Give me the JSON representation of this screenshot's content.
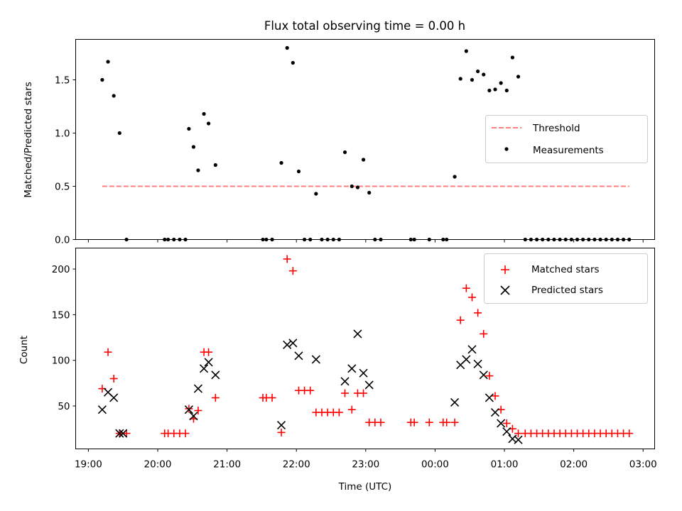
{
  "chart_data": [
    {
      "type": "scatter",
      "title": "Flux total observing time = 0.00 h",
      "xlabel": "",
      "ylabel": "Matched/Predicted stars",
      "x_time_range": [
        "19:00",
        "03:00"
      ],
      "xlim": [
        "18:49",
        "03:10"
      ],
      "ylim": [
        0,
        1.88
      ],
      "ytick_labels": [
        "0.0",
        "0.5",
        "1.0",
        "1.5"
      ],
      "yticks": [
        0,
        0.5,
        1.0,
        1.5
      ],
      "legend_position": "center-right",
      "threshold": {
        "name": "Threshold",
        "value": 0.5,
        "x_from": "19:12",
        "x_to": "02:48",
        "color": "#ff7f7f",
        "style": "dashed"
      },
      "series": [
        {
          "name": "Measurements",
          "marker": "dot",
          "color": "#000000",
          "points": [
            [
              "19:12",
              1.5
            ],
            [
              "19:17",
              1.67
            ],
            [
              "19:22",
              1.35
            ],
            [
              "19:27",
              1.0
            ],
            [
              "19:33",
              0.0
            ],
            [
              "20:06",
              0.0
            ],
            [
              "20:09",
              0.0
            ],
            [
              "20:14",
              0.0
            ],
            [
              "20:19",
              0.0
            ],
            [
              "20:24",
              0.0
            ],
            [
              "20:27",
              1.04
            ],
            [
              "20:31",
              0.87
            ],
            [
              "20:35",
              0.65
            ],
            [
              "20:40",
              1.18
            ],
            [
              "20:44",
              1.09
            ],
            [
              "20:50",
              0.7
            ],
            [
              "21:31",
              0.0
            ],
            [
              "21:34",
              0.0
            ],
            [
              "21:39",
              0.0
            ],
            [
              "21:47",
              0.72
            ],
            [
              "21:52",
              1.8
            ],
            [
              "21:57",
              1.66
            ],
            [
              "22:02",
              0.64
            ],
            [
              "22:07",
              0.0
            ],
            [
              "22:12",
              0.0
            ],
            [
              "22:17",
              0.43
            ],
            [
              "22:22",
              0.0
            ],
            [
              "22:27",
              0.0
            ],
            [
              "22:32",
              0.0
            ],
            [
              "22:37",
              0.0
            ],
            [
              "22:42",
              0.82
            ],
            [
              "22:48",
              0.5
            ],
            [
              "22:53",
              0.49
            ],
            [
              "22:58",
              0.75
            ],
            [
              "23:03",
              0.44
            ],
            [
              "23:08",
              0.0
            ],
            [
              "23:13",
              0.0
            ],
            [
              "23:39",
              0.0
            ],
            [
              "23:42",
              0.0
            ],
            [
              "23:55",
              0.0
            ],
            [
              "00:07",
              0.0
            ],
            [
              "00:10",
              0.0
            ],
            [
              "00:17",
              0.59
            ],
            [
              "00:22",
              1.51
            ],
            [
              "00:27",
              1.77
            ],
            [
              "00:32",
              1.5
            ],
            [
              "00:37",
              1.58
            ],
            [
              "00:42",
              1.55
            ],
            [
              "00:47",
              1.4
            ],
            [
              "00:52",
              1.41
            ],
            [
              "00:57",
              1.47
            ],
            [
              "01:02",
              1.4
            ],
            [
              "01:07",
              1.71
            ],
            [
              "01:12",
              1.53
            ],
            [
              "01:18",
              0.0
            ],
            [
              "01:23",
              0.0
            ],
            [
              "01:28",
              0.0
            ],
            [
              "01:33",
              0.0
            ],
            [
              "01:38",
              0.0
            ],
            [
              "01:43",
              0.0
            ],
            [
              "01:48",
              0.0
            ],
            [
              "01:53",
              0.0
            ],
            [
              "01:58",
              0.0
            ],
            [
              "02:03",
              0.0
            ],
            [
              "02:08",
              0.0
            ],
            [
              "02:13",
              0.0
            ],
            [
              "02:18",
              0.0
            ],
            [
              "02:23",
              0.0
            ],
            [
              "02:28",
              0.0
            ],
            [
              "02:33",
              0.0
            ],
            [
              "02:38",
              0.0
            ],
            [
              "02:43",
              0.0
            ],
            [
              "02:48",
              0.0
            ]
          ]
        }
      ]
    },
    {
      "type": "scatter",
      "title": "",
      "xlabel": "Time (UTC)",
      "ylabel": "Count",
      "xlim": [
        "18:49",
        "03:10"
      ],
      "xtick_labels": [
        "19:00",
        "20:00",
        "21:00",
        "22:00",
        "23:00",
        "00:00",
        "01:00",
        "02:00",
        "03:00"
      ],
      "ylim": [
        3,
        223
      ],
      "ytick_labels": [
        "50",
        "100",
        "150",
        "200"
      ],
      "yticks": [
        50,
        100,
        150,
        200
      ],
      "legend_position": "top-right",
      "series": [
        {
          "name": "Matched stars",
          "marker": "plus",
          "color": "#ff0000",
          "points": [
            [
              "19:12",
              69
            ],
            [
              "19:17",
              109
            ],
            [
              "19:22",
              80
            ],
            [
              "19:27",
              20
            ],
            [
              "19:33",
              20
            ],
            [
              "20:06",
              20
            ],
            [
              "20:09",
              20
            ],
            [
              "20:14",
              20
            ],
            [
              "20:19",
              20
            ],
            [
              "20:24",
              20
            ],
            [
              "20:27",
              47
            ],
            [
              "20:31",
              36
            ],
            [
              "20:35",
              45
            ],
            [
              "20:40",
              109
            ],
            [
              "20:44",
              109
            ],
            [
              "20:50",
              59
            ],
            [
              "21:31",
              59
            ],
            [
              "21:34",
              59
            ],
            [
              "21:39",
              59
            ],
            [
              "21:47",
              21
            ],
            [
              "21:52",
              211
            ],
            [
              "21:57",
              198
            ],
            [
              "22:02",
              67
            ],
            [
              "22:07",
              67
            ],
            [
              "22:12",
              67
            ],
            [
              "22:17",
              43
            ],
            [
              "22:22",
              43
            ],
            [
              "22:27",
              43
            ],
            [
              "22:32",
              43
            ],
            [
              "22:37",
              43
            ],
            [
              "22:42",
              64
            ],
            [
              "22:48",
              46
            ],
            [
              "22:53",
              64
            ],
            [
              "22:58",
              64
            ],
            [
              "23:03",
              32
            ],
            [
              "23:08",
              32
            ],
            [
              "23:13",
              32
            ],
            [
              "23:39",
              32
            ],
            [
              "23:42",
              32
            ],
            [
              "23:55",
              32
            ],
            [
              "00:07",
              32
            ],
            [
              "00:10",
              32
            ],
            [
              "00:17",
              32
            ],
            [
              "00:22",
              144
            ],
            [
              "00:27",
              179
            ],
            [
              "00:32",
              169
            ],
            [
              "00:37",
              152
            ],
            [
              "00:42",
              129
            ],
            [
              "00:47",
              83
            ],
            [
              "00:52",
              61
            ],
            [
              "00:57",
              46
            ],
            [
              "01:02",
              31
            ],
            [
              "01:07",
              25
            ],
            [
              "01:12",
              20
            ],
            [
              "01:18",
              20
            ],
            [
              "01:23",
              20
            ],
            [
              "01:28",
              20
            ],
            [
              "01:33",
              20
            ],
            [
              "01:38",
              20
            ],
            [
              "01:43",
              20
            ],
            [
              "01:48",
              20
            ],
            [
              "01:53",
              20
            ],
            [
              "01:58",
              20
            ],
            [
              "02:03",
              20
            ],
            [
              "02:08",
              20
            ],
            [
              "02:13",
              20
            ],
            [
              "02:18",
              20
            ],
            [
              "02:23",
              20
            ],
            [
              "02:28",
              20
            ],
            [
              "02:33",
              20
            ],
            [
              "02:38",
              20
            ],
            [
              "02:43",
              20
            ],
            [
              "02:48",
              20
            ]
          ]
        },
        {
          "name": "Predicted stars",
          "marker": "x",
          "color": "#000000",
          "points": [
            [
              "19:12",
              46
            ],
            [
              "19:17",
              65
            ],
            [
              "19:22",
              59
            ],
            [
              "19:27",
              20
            ],
            [
              "19:30",
              20
            ],
            [
              "20:27",
              46
            ],
            [
              "20:31",
              39
            ],
            [
              "20:35",
              69
            ],
            [
              "20:40",
              91
            ],
            [
              "20:44",
              98
            ],
            [
              "20:50",
              84
            ],
            [
              "21:47",
              29
            ],
            [
              "21:52",
              117
            ],
            [
              "21:57",
              119
            ],
            [
              "22:02",
              105
            ],
            [
              "22:17",
              101
            ],
            [
              "22:42",
              77
            ],
            [
              "22:48",
              91
            ],
            [
              "22:53",
              129
            ],
            [
              "22:58",
              86
            ],
            [
              "23:03",
              73
            ],
            [
              "00:17",
              54
            ],
            [
              "00:22",
              95
            ],
            [
              "00:27",
              101
            ],
            [
              "00:32",
              112
            ],
            [
              "00:37",
              96
            ],
            [
              "00:42",
              84
            ],
            [
              "00:47",
              59
            ],
            [
              "00:52",
              43
            ],
            [
              "00:57",
              31
            ],
            [
              "01:02",
              22
            ],
            [
              "01:07",
              14
            ],
            [
              "01:12",
              13
            ]
          ]
        }
      ]
    }
  ]
}
